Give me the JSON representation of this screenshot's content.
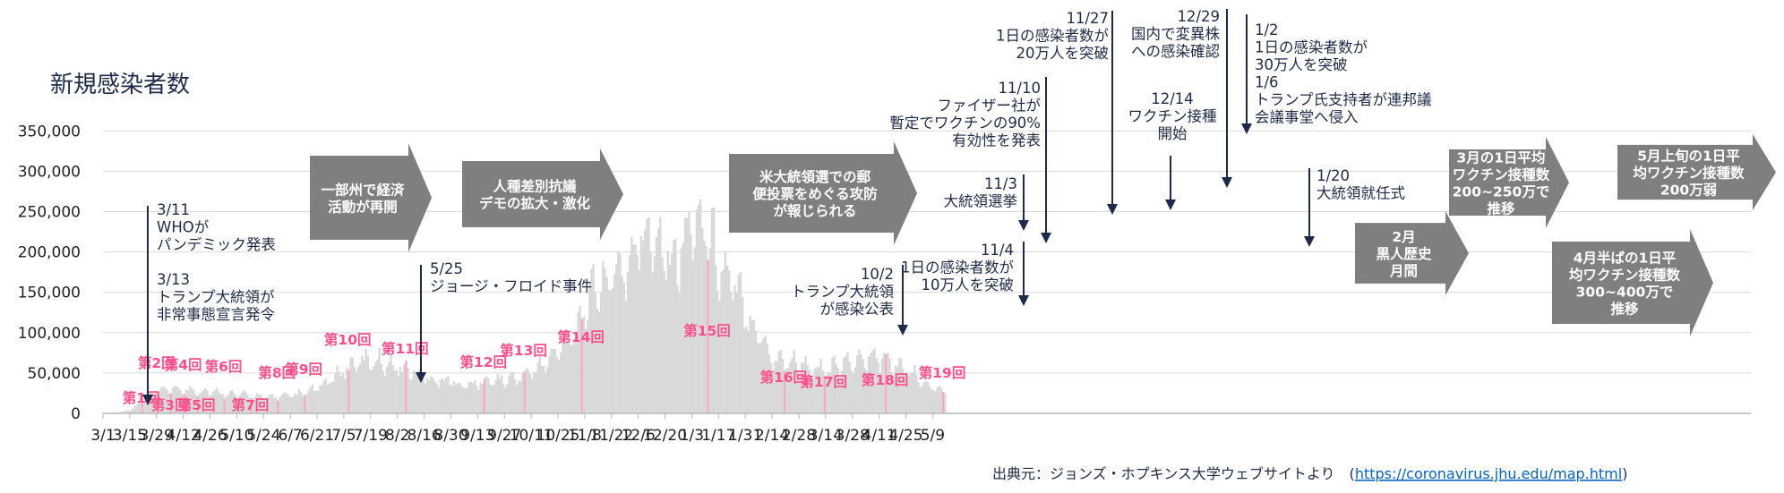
{
  "chart_data": {
    "type": "bar",
    "title": "新規感染者数",
    "x_start": "3/1",
    "x_ticks": [
      "3/1",
      "3/15",
      "3/29",
      "4/12",
      "4/26",
      "5/10",
      "5/24",
      "6/7",
      "6/21",
      "7/5",
      "7/19",
      "8/2",
      "8/16",
      "8/30",
      "9/13",
      "9/27",
      "10/11",
      "10/25",
      "11/8",
      "11/22",
      "12/6",
      "12/20",
      "1/3",
      "1/17",
      "1/31",
      "2/14",
      "2/28",
      "3/14",
      "3/28",
      "4/11",
      "4/25",
      "5/9"
    ],
    "y_ticks": [
      "0",
      "50,000",
      "100,000",
      "150,000",
      "200,000",
      "250,000",
      "300,000",
      "350,000"
    ],
    "ylim": [
      0,
      350000
    ],
    "grid": true,
    "weekly_levels": [
      {
        "week_start": "3/1",
        "value": 300
      },
      {
        "week_start": "3/8",
        "value": 900
      },
      {
        "week_start": "3/15",
        "value": 4500
      },
      {
        "week_start": "3/22",
        "value": 16000
      },
      {
        "week_start": "3/29",
        "value": 27000
      },
      {
        "week_start": "4/5",
        "value": 30000
      },
      {
        "week_start": "4/12",
        "value": 29000
      },
      {
        "week_start": "4/19",
        "value": 28000
      },
      {
        "week_start": "4/26",
        "value": 27000
      },
      {
        "week_start": "5/3",
        "value": 25000
      },
      {
        "week_start": "5/10",
        "value": 23000
      },
      {
        "week_start": "5/17",
        "value": 22000
      },
      {
        "week_start": "5/24",
        "value": 20000
      },
      {
        "week_start": "5/31",
        "value": 21000
      },
      {
        "week_start": "6/7",
        "value": 21500
      },
      {
        "week_start": "6/14",
        "value": 25000
      },
      {
        "week_start": "6/21",
        "value": 31000
      },
      {
        "week_start": "6/28",
        "value": 42000
      },
      {
        "week_start": "7/5",
        "value": 55000
      },
      {
        "week_start": "7/12",
        "value": 63000
      },
      {
        "week_start": "7/19",
        "value": 66000
      },
      {
        "week_start": "7/26",
        "value": 63000
      },
      {
        "week_start": "8/2",
        "value": 56000
      },
      {
        "week_start": "8/9",
        "value": 52000
      },
      {
        "week_start": "8/16",
        "value": 45000
      },
      {
        "week_start": "8/23",
        "value": 41000
      },
      {
        "week_start": "8/30",
        "value": 40000
      },
      {
        "week_start": "9/6",
        "value": 34000
      },
      {
        "week_start": "9/13",
        "value": 37000
      },
      {
        "week_start": "9/20",
        "value": 41000
      },
      {
        "week_start": "9/27",
        "value": 41000
      },
      {
        "week_start": "10/4",
        "value": 45000
      },
      {
        "week_start": "10/11",
        "value": 52000
      },
      {
        "week_start": "10/18",
        "value": 62000
      },
      {
        "week_start": "10/25",
        "value": 78000
      },
      {
        "week_start": "11/1",
        "value": 100000
      },
      {
        "week_start": "11/8",
        "value": 132000
      },
      {
        "week_start": "11/15",
        "value": 160000
      },
      {
        "week_start": "11/22",
        "value": 170000
      },
      {
        "week_start": "11/29",
        "value": 180000
      },
      {
        "week_start": "12/6",
        "value": 210000
      },
      {
        "week_start": "12/13",
        "value": 222000
      },
      {
        "week_start": "12/20",
        "value": 205000
      },
      {
        "week_start": "12/27",
        "value": 190000
      },
      {
        "week_start": "1/3",
        "value": 245000
      },
      {
        "week_start": "1/10",
        "value": 228000
      },
      {
        "week_start": "1/17",
        "value": 182000
      },
      {
        "week_start": "1/24",
        "value": 158000
      },
      {
        "week_start": "1/31",
        "value": 126000
      },
      {
        "week_start": "2/7",
        "value": 98000
      },
      {
        "week_start": "2/14",
        "value": 68000
      },
      {
        "week_start": "2/21",
        "value": 64000
      },
      {
        "week_start": "2/28",
        "value": 62000
      },
      {
        "week_start": "3/7",
        "value": 54000
      },
      {
        "week_start": "3/14",
        "value": 53000
      },
      {
        "week_start": "3/21",
        "value": 58000
      },
      {
        "week_start": "3/28",
        "value": 64000
      },
      {
        "week_start": "4/4",
        "value": 68000
      },
      {
        "week_start": "4/11",
        "value": 68000
      },
      {
        "week_start": "4/18",
        "value": 60000
      },
      {
        "week_start": "4/25",
        "value": 52000
      },
      {
        "week_start": "5/2",
        "value": 43000
      },
      {
        "week_start": "5/9",
        "value": 33000
      },
      {
        "week_start": "5/16",
        "value": 25000
      }
    ],
    "waves": [
      {
        "label": "第1回",
        "date": "3/21"
      },
      {
        "label": "第2回",
        "date": "3/29"
      },
      {
        "label": "第3回",
        "date": "4/5"
      },
      {
        "label": "第4回",
        "date": "4/12"
      },
      {
        "label": "第5回",
        "date": "4/19"
      },
      {
        "label": "第6回",
        "date": "5/3"
      },
      {
        "label": "第7回",
        "date": "5/17"
      },
      {
        "label": "第8回",
        "date": "5/31"
      },
      {
        "label": "第9回",
        "date": "6/14"
      },
      {
        "label": "第10回",
        "date": "7/7"
      },
      {
        "label": "第11回",
        "date": "8/6"
      },
      {
        "label": "第12回",
        "date": "9/16"
      },
      {
        "label": "第13回",
        "date": "10/7"
      },
      {
        "label": "第14回",
        "date": "11/6"
      },
      {
        "label": "第15回",
        "date": "1/11"
      },
      {
        "label": "第16回",
        "date": "2/20"
      },
      {
        "label": "第17回",
        "date": "3/13"
      },
      {
        "label": "第18回",
        "date": "4/14"
      },
      {
        "label": "第19回",
        "date": "5/14"
      }
    ],
    "events": [
      {
        "lines": [
          "3/11",
          "WHOが",
          "パンデミック発表",
          "",
          "3/13",
          "トランプ大統領が",
          "非常事態宣言発令"
        ]
      },
      {
        "lines": [
          "5/25",
          "ジョージ・フロイド事件"
        ]
      },
      {
        "lines": [
          "10/2",
          "トランプ大統領",
          "が感染公表"
        ]
      },
      {
        "lines": [
          "11/4",
          "1日の感染者数が",
          "10万人を突破"
        ]
      },
      {
        "lines": [
          "11/3",
          "大統領選挙"
        ]
      },
      {
        "lines": [
          "11/10",
          "ファイザー社が",
          "暫定でワクチンの90%",
          "有効性を発表"
        ]
      },
      {
        "lines": [
          "11/27",
          "1日の感染者数が",
          "20万人を突破"
        ]
      },
      {
        "lines": [
          "12/14",
          "ワクチン接種",
          "開始"
        ]
      },
      {
        "lines": [
          "12/29",
          "国内で変異株",
          "への感染確認"
        ]
      },
      {
        "lines": [
          "1/2",
          "1日の感染者数が",
          "30万人を突破",
          "1/6",
          "トランプ氏支持者が連邦議",
          "会議事堂へ侵入"
        ]
      },
      {
        "lines": [
          "1/20",
          "大統領就任式"
        ]
      }
    ],
    "periods": [
      {
        "lines": [
          "一部州で経済",
          "活動が再開"
        ]
      },
      {
        "lines": [
          "人種差別抗議",
          "デモの拡大・激化"
        ]
      },
      {
        "lines": [
          "米大統領選での郵",
          "便投票をめぐる攻防",
          "が報じられる"
        ]
      },
      {
        "lines": [
          "2月",
          "黒人歴史",
          "月間"
        ]
      },
      {
        "lines": [
          "3月の1日平均",
          "ワクチン接種数",
          "200~250万で",
          "推移"
        ]
      },
      {
        "lines": [
          "4月半ばの1日平",
          "均ワクチン接種数",
          "300~400万で",
          "推移"
        ]
      },
      {
        "lines": [
          "5月上旬の1日平",
          "均ワクチン接種数",
          "200万弱"
        ]
      }
    ],
    "colors": {
      "bars": "#d9d9d9",
      "wave_bars": "#f7a9c4",
      "wave_text": "#ff4f8b",
      "arrow": "#7f7f7f",
      "grid": "#d9d9d9",
      "text": "#1e2a4a"
    }
  },
  "source": {
    "label": "出典元：ジョンズ・ホプキンス大学ウェブサイトより　(",
    "url": "https://coronavirus.jhu.edu/map.html",
    "close": ")"
  }
}
